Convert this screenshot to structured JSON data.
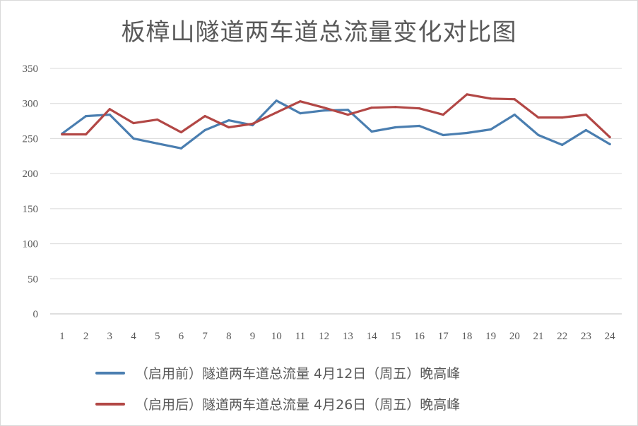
{
  "chart_data": {
    "type": "line",
    "title": "板樟山隧道两车道总流量变化对比图",
    "xlabel": "",
    "ylabel": "",
    "categories": [
      "1",
      "2",
      "3",
      "4",
      "5",
      "6",
      "7",
      "8",
      "9",
      "10",
      "11",
      "12",
      "13",
      "14",
      "15",
      "16",
      "17",
      "18",
      "19",
      "20",
      "21",
      "22",
      "23",
      "24"
    ],
    "ylim": [
      0,
      350
    ],
    "yticks": [
      0,
      50,
      100,
      150,
      200,
      250,
      300,
      350
    ],
    "grid": true,
    "legend_position": "bottom",
    "series": [
      {
        "name": "（启用前）隧道两车道总流量 4月12日（周五）晚高峰",
        "color": "#4a7eb0",
        "values": [
          257,
          282,
          284,
          250,
          243,
          236,
          262,
          276,
          269,
          304,
          286,
          290,
          291,
          260,
          266,
          268,
          255,
          258,
          263,
          284,
          255,
          241,
          262,
          242
        ]
      },
      {
        "name": "（启用后）隧道两车道总流量 4月26日（周五）晚高峰",
        "color": "#b24745",
        "values": [
          256,
          256,
          292,
          272,
          277,
          259,
          282,
          266,
          271,
          287,
          303,
          294,
          284,
          294,
          295,
          293,
          284,
          313,
          307,
          306,
          280,
          280,
          284,
          252
        ]
      }
    ]
  }
}
